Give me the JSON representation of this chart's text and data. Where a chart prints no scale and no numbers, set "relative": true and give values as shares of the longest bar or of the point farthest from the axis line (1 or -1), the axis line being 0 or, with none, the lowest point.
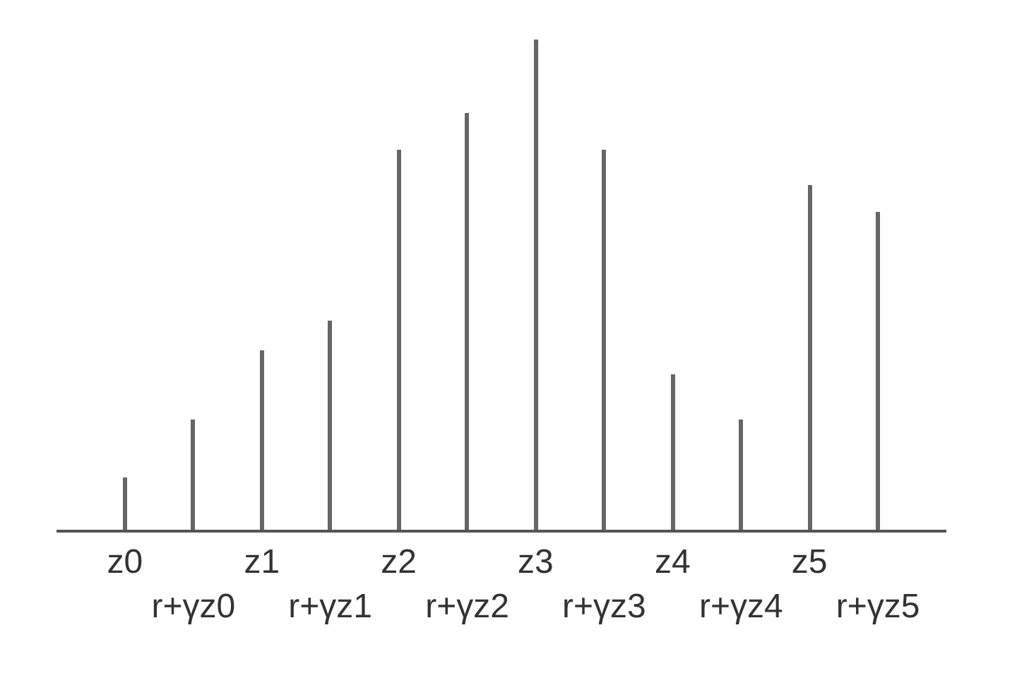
{
  "chart_data": {
    "type": "bar",
    "relative": true,
    "categories": [
      "z0",
      "r+γz0",
      "z1",
      "r+γz1",
      "z2",
      "r+γz2",
      "z3",
      "r+γz3",
      "z4",
      "r+γz4",
      "z5",
      "r+γz5"
    ],
    "values": [
      0.107,
      0.225,
      0.366,
      0.427,
      0.775,
      0.85,
      1.0,
      0.775,
      0.317,
      0.225,
      0.703,
      0.648
    ],
    "color": "#666666"
  }
}
